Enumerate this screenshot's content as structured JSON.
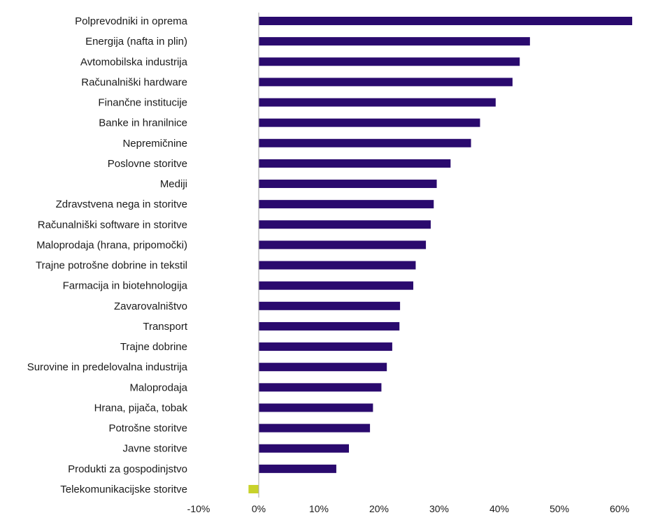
{
  "chart_data": {
    "type": "bar",
    "orientation": "horizontal",
    "categories": [
      "Polprevodniki in oprema",
      "Energija (nafta in plin)",
      "Avtomobilska industrija",
      "Računalniški hardware",
      "Finančne institucije",
      "Banke in hranilnice",
      "Nepremičnine",
      "Poslovne storitve",
      "Mediji",
      "Zdravstvena nega in storitve",
      "Računalniški software in storitve",
      "Maloprodaja (hrana, pripomočki)",
      "Trajne potrošne dobrine in tekstil",
      "Farmacija in biotehnologija",
      "Zavarovalništvo",
      "Transport",
      "Trajne dobrine",
      "Surovine in predelovalna industrija",
      "Maloprodaja",
      "Hrana, pijača, tobak",
      "Potrošne storitve",
      "Javne storitve",
      "Produkti za gospodinjstvo",
      "Telekomunikacijske storitve"
    ],
    "values": [
      62.1,
      45.1,
      43.4,
      42.2,
      39.4,
      36.8,
      35.3,
      31.9,
      29.6,
      29.1,
      28.6,
      27.8,
      26.1,
      25.7,
      23.5,
      23.4,
      22.2,
      21.3,
      20.4,
      19.0,
      18.5,
      15.0,
      12.9,
      -1.7
    ],
    "xlim": [
      -10,
      65
    ],
    "xticks": [
      -10,
      0,
      10,
      20,
      30,
      40,
      50,
      60
    ],
    "xtick_labels": [
      "-10%",
      "0%",
      "10%",
      "20%",
      "30%",
      "40%",
      "50%",
      "60%"
    ],
    "title": "",
    "xlabel": "",
    "ylabel": "",
    "grid": false,
    "colors": {
      "positive": "#2a0a6e",
      "negative": "#c8d22b",
      "axis": "#a6a6a6"
    }
  }
}
